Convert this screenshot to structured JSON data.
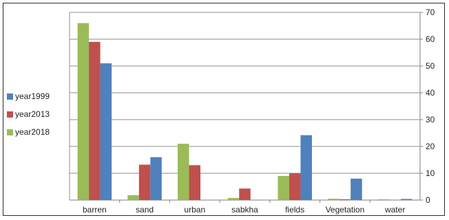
{
  "chart_data": {
    "type": "bar",
    "categories": [
      "barren",
      "sand",
      "urban",
      "sabkha",
      "fields",
      "Vegetation",
      "water"
    ],
    "series": [
      {
        "name": "year2018",
        "color": "#9bbb59",
        "values": [
          66,
          1.8,
          21,
          0.8,
          9,
          0.5,
          0.3
        ]
      },
      {
        "name": "year2013",
        "color": "#c0504d",
        "values": [
          59,
          13.2,
          13,
          4.3,
          10,
          0.3,
          0.1
        ]
      },
      {
        "name": "year1999",
        "color": "#4f81bd",
        "values": [
          51,
          16,
          0,
          0,
          24.2,
          8,
          0.4
        ]
      }
    ],
    "legend_order": [
      "year1999",
      "year2013",
      "year2018"
    ],
    "ylim": [
      0,
      70
    ],
    "yticks": [
      0,
      10,
      20,
      30,
      40,
      50,
      60,
      70
    ],
    "y_axis_side": "right",
    "grid": true,
    "legend_position": "left"
  }
}
